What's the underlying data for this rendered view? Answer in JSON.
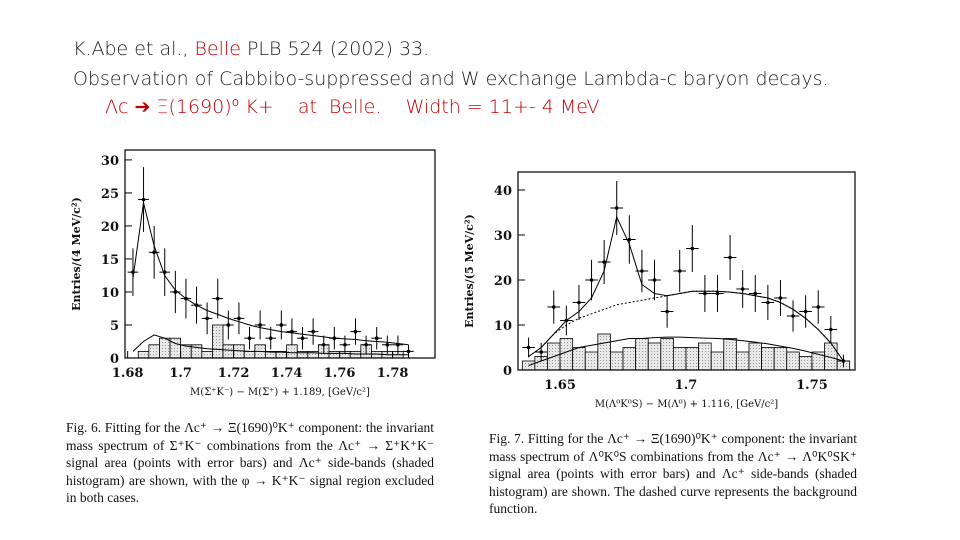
{
  "header": {
    "line1_prefix": "K.Abe et al., ",
    "line1_highlight": "Belle",
    "line1_suffix": " PLB 524 (2002) 33.",
    "line2": "Observation of Cabbibo-suppressed and W exchange Lambda-c baryon decays.",
    "line3": "Λc ➔ Ξ(1690)⁰ K+    at  Belle.    Width = 11+- 4 MeV"
  },
  "chart_data": [
    {
      "type": "fit",
      "xlabel": "M(Σ⁺K⁻) − M(Σ⁺) + 1.189,   [GeV/c²]",
      "ylabel": "Entries/(4 MeV/c²)",
      "xlim": [
        1.679,
        1.796
      ],
      "ylim": [
        0,
        31.5
      ],
      "xticks": [
        1.68,
        1.7,
        1.72,
        1.74,
        1.76,
        1.78
      ],
      "yticks": [
        0,
        5,
        10,
        15,
        20,
        25,
        30
      ],
      "x": [
        1.682,
        1.686,
        1.69,
        1.694,
        1.698,
        1.702,
        1.706,
        1.71,
        1.714,
        1.718,
        1.722,
        1.726,
        1.73,
        1.734,
        1.738,
        1.742,
        1.746,
        1.75,
        1.754,
        1.758,
        1.762,
        1.766,
        1.77,
        1.774,
        1.778,
        1.782,
        1.786
      ],
      "series": [
        {
          "type": "points",
          "color": "#000000",
          "values": [
            13,
            24,
            16,
            13,
            10,
            9,
            8,
            6,
            9,
            5,
            6,
            3,
            5,
            3,
            5,
            4,
            3,
            4,
            2,
            3,
            2,
            4,
            2,
            3,
            2,
            2,
            1
          ],
          "errors": [
            3.6,
            4.9,
            4,
            3.6,
            3.2,
            3,
            2.8,
            2.4,
            3,
            2.2,
            2.4,
            1.7,
            2.2,
            1.7,
            2.2,
            2,
            1.7,
            2,
            1.4,
            1.7,
            1.4,
            2,
            1.4,
            1.7,
            1.4,
            1.4,
            1
          ]
        },
        {
          "type": "step",
          "color": "#d9d9d9",
          "values": [
            0,
            1,
            2,
            3,
            3,
            2,
            2,
            1,
            5,
            2,
            2,
            1,
            2,
            1,
            1,
            2,
            1,
            1,
            2,
            1,
            1,
            1,
            2,
            1,
            1,
            1,
            0
          ]
        },
        {
          "type": "line",
          "color": "#000000",
          "values": [
            12,
            23.5,
            17,
            12.5,
            10.3,
            9,
            8,
            7.2,
            6.6,
            6,
            5.5,
            5,
            4.6,
            4.3,
            4,
            3.8,
            3.6,
            3.4,
            3.2,
            3,
            2.9,
            2.8,
            2.6,
            2.5,
            2.4,
            2.2,
            2
          ]
        },
        {
          "type": "line",
          "color": "#000000",
          "values": [
            1,
            2.5,
            3.5,
            3,
            2.2,
            1.8,
            1.6,
            1.4,
            1.3,
            1.2,
            1.1,
            1,
            1,
            0.9,
            0.9,
            0.8,
            0.8,
            0.8,
            0.7,
            0.7,
            0.7,
            0.6,
            0.6,
            0.6,
            0.5,
            0.5,
            0.5
          ]
        }
      ]
    },
    {
      "type": "fit",
      "xlabel": "M(Λ⁰K⁰S) − M(Λ⁰) + 1.116,   [GeV/c²]",
      "ylabel": "Entries/(5 MeV/c²)",
      "xlim": [
        1.6333,
        1.7671
      ],
      "ylim": [
        0,
        44
      ],
      "xticks": [
        1.65,
        1.7,
        1.75
      ],
      "yticks": [
        0,
        10,
        20,
        30,
        40
      ],
      "x": [
        1.6375,
        1.6425,
        1.6475,
        1.6525,
        1.6575,
        1.6625,
        1.6675,
        1.6725,
        1.6775,
        1.6825,
        1.6875,
        1.6925,
        1.6975,
        1.7025,
        1.7075,
        1.7125,
        1.7175,
        1.7225,
        1.7275,
        1.7325,
        1.7375,
        1.7425,
        1.7475,
        1.7525,
        1.7575,
        1.7625
      ],
      "series": [
        {
          "type": "points",
          "color": "#000000",
          "values": [
            5,
            4,
            14,
            11,
            15,
            20,
            24,
            36,
            29,
            22,
            20,
            13,
            22,
            27,
            17,
            17,
            25,
            18,
            17,
            15,
            16,
            12,
            13,
            14,
            9,
            2
          ],
          "errors": [
            2.2,
            2,
            3.7,
            3.3,
            3.9,
            4.5,
            4.9,
            6,
            5.4,
            4.7,
            4.5,
            3.6,
            4.7,
            5.2,
            4.1,
            4.1,
            5,
            4.2,
            4.1,
            3.9,
            4,
            3.5,
            3.6,
            3.7,
            3,
            1.4
          ]
        },
        {
          "type": "step",
          "color": "#d9d9d9",
          "values": [
            2,
            3,
            6,
            7,
            5,
            4,
            8,
            4,
            5,
            7,
            6,
            7,
            5,
            5,
            6,
            4,
            7,
            4,
            6,
            5,
            5,
            4,
            3,
            4,
            6,
            2
          ]
        },
        {
          "type": "line",
          "color": "#000000",
          "values": [
            3,
            5,
            8,
            11,
            13,
            16,
            22,
            34,
            28,
            19,
            17,
            16.5,
            17,
            17.5,
            17.5,
            17.5,
            17.3,
            17,
            16.5,
            16,
            15,
            13.5,
            11.5,
            9,
            6,
            2
          ]
        },
        {
          "type": "line",
          "color": "#000000",
          "dash": true,
          "values": [
            3,
            5,
            8,
            10,
            11.5,
            12.5,
            13.5,
            14.5,
            15,
            15.5,
            16,
            16.5,
            17,
            17.5,
            17.5,
            17.5,
            17.3,
            17,
            16.5,
            16,
            15,
            13.5,
            11.5,
            9,
            6,
            2
          ]
        },
        {
          "type": "line",
          "color": "#000000",
          "values": [
            1,
            2,
            3,
            4,
            5,
            5.5,
            6,
            6.5,
            7,
            7,
            7.2,
            7.3,
            7.3,
            7.2,
            7.1,
            7,
            6.8,
            6.5,
            6.2,
            5.8,
            5.3,
            4.8,
            4.2,
            3.5,
            2.8,
            2
          ]
        }
      ]
    }
  ],
  "captions": [
    "Fig. 6. Fitting for the Λc⁺ → Ξ(1690)⁰K⁺ component: the invariant mass spectrum of Σ⁺K⁻ combinations from the Λc⁺ → Σ⁺K⁺K⁻ signal area (points with error bars) and Λc⁺ side-bands (shaded histogram) are shown, with the φ → K⁺K⁻ signal region excluded in both cases.",
    "Fig. 7. Fitting for the Λc⁺ → Ξ(1690)⁰K⁺ component: the invariant mass spectrum of Λ⁰K⁰S combinations from the Λc⁺ → Λ⁰K⁰SK⁺ signal area (points with error bars) and Λc⁺ side-bands (shaded histogram) are shown. The dashed curve represents the background function."
  ]
}
